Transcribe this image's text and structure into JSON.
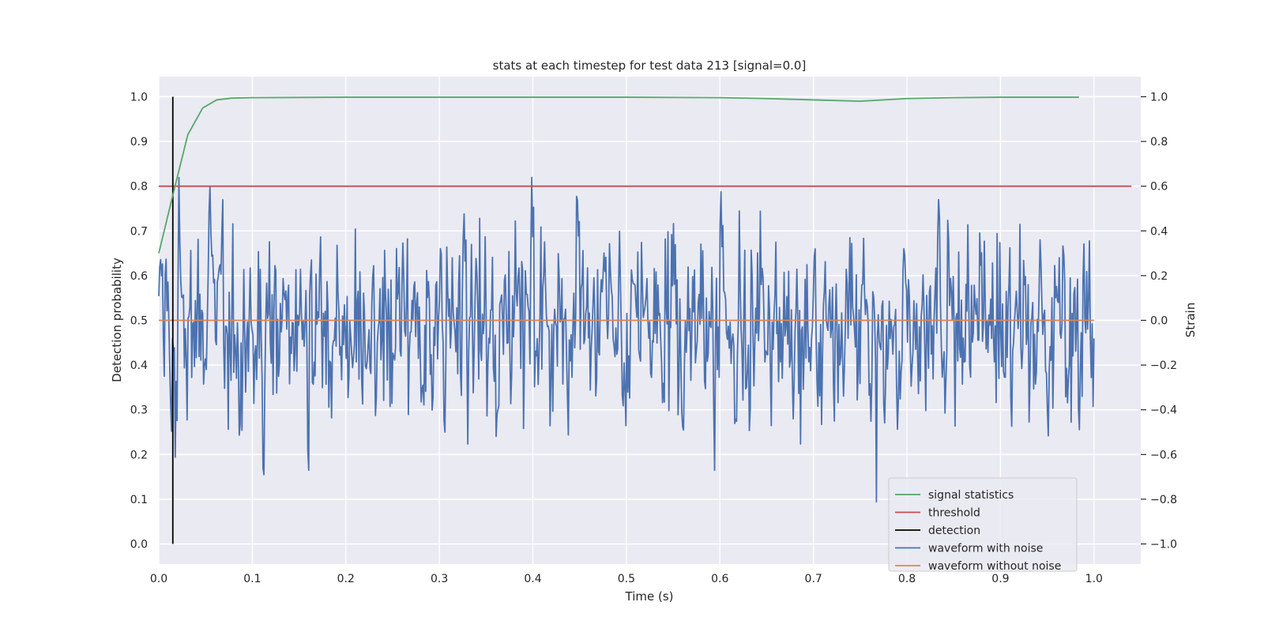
{
  "chart_data": {
    "type": "line",
    "title": "stats at each timestep for test data 213 [signal=0.0]",
    "xlabel": "Time (s)",
    "ylabel_left": "Detection probability",
    "ylabel_right": "Strain",
    "xlim": [
      0.0,
      1.05
    ],
    "ylim_left": [
      -0.045,
      1.045
    ],
    "ylim_right": [
      -1.09,
      1.09
    ],
    "x_ticks": [
      "0.0",
      "0.1",
      "0.2",
      "0.3",
      "0.4",
      "0.5",
      "0.6",
      "0.7",
      "0.8",
      "0.9",
      "1.0"
    ],
    "y_ticks_left": [
      "0.0",
      "0.1",
      "0.2",
      "0.3",
      "0.4",
      "0.5",
      "0.6",
      "0.7",
      "0.8",
      "0.9",
      "1.0"
    ],
    "y_ticks_right": [
      "−1.0",
      "−0.8",
      "−0.6",
      "−0.4",
      "−0.2",
      "0.0",
      "0.2",
      "0.4",
      "0.6",
      "0.8",
      "1.0"
    ],
    "grid": true,
    "legend_position": "bottom-right",
    "colors": {
      "signal_statistics": "#55a868",
      "threshold": "#c44e52",
      "detection": "#000000",
      "waveform_with_noise": "#4c72b0",
      "waveform_without_noise": "#dd8452",
      "plot_background": "#eaeaf2",
      "grid": "#ffffff"
    },
    "series": [
      {
        "name": "signal statistics",
        "axis": "left",
        "x": [
          0.0,
          0.015,
          0.031,
          0.047,
          0.062,
          0.078,
          0.1,
          0.2,
          0.3,
          0.4,
          0.5,
          0.6,
          0.65,
          0.7,
          0.75,
          0.8,
          0.85,
          0.9,
          0.95,
          0.984
        ],
        "y": [
          0.65,
          0.78,
          0.915,
          0.975,
          0.993,
          0.997,
          0.998,
          0.999,
          0.999,
          0.999,
          0.999,
          0.998,
          0.996,
          0.993,
          0.99,
          0.996,
          0.998,
          0.999,
          0.999,
          0.999
        ]
      },
      {
        "name": "threshold",
        "axis": "left",
        "x": [
          0.0,
          1.04
        ],
        "y": [
          0.8,
          0.8
        ]
      },
      {
        "name": "detection",
        "axis": "left",
        "x": [
          0.015,
          0.015
        ],
        "y": [
          0.0,
          1.0
        ]
      },
      {
        "name": "waveform with noise",
        "axis": "right",
        "x_range": [
          0.0,
          1.0
        ],
        "n_points": 1024,
        "y_approx_range": [
          -1.0,
          1.0
        ],
        "y_approx_std": 0.3
      },
      {
        "name": "waveform without noise",
        "axis": "right",
        "x": [
          0.0,
          1.0
        ],
        "y": [
          0.0,
          0.0
        ]
      }
    ]
  }
}
